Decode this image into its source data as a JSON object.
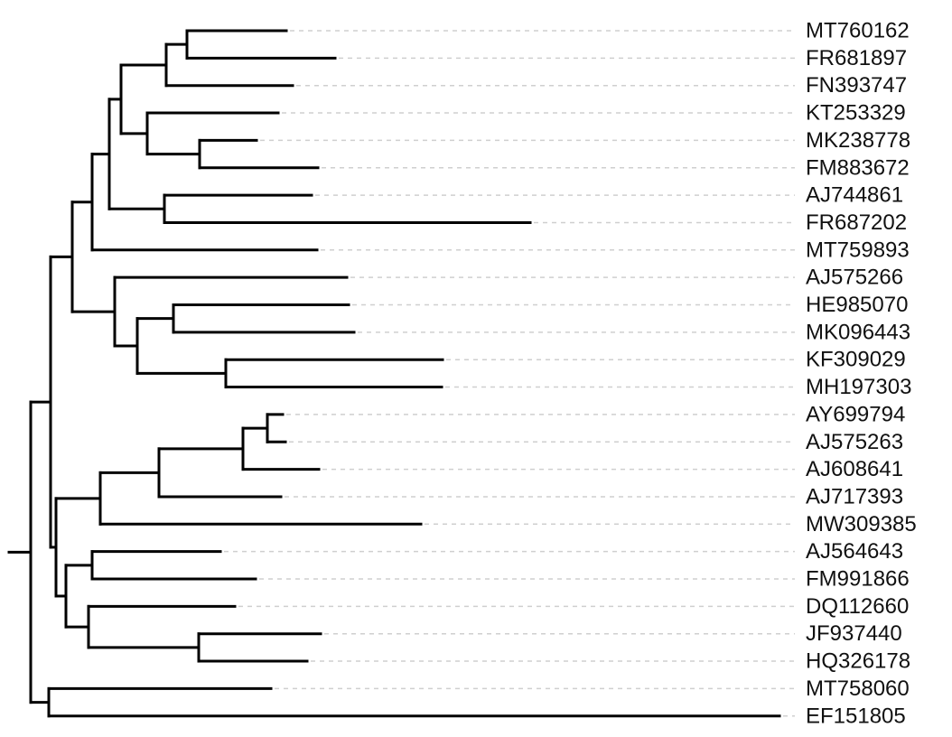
{
  "tree": {
    "branch_color": "#000000",
    "guide_color": "#cfcfcf",
    "leaves": [
      {
        "id": "t1",
        "label": "MT760162",
        "depth": 0.283
      },
      {
        "id": "t2",
        "label": "FR681897",
        "depth": 0.337
      },
      {
        "id": "t3",
        "label": "FN393747",
        "depth": 0.29
      },
      {
        "id": "t4",
        "label": "KT253329",
        "depth": 0.274
      },
      {
        "id": "t5",
        "label": "MK238778",
        "depth": 0.25
      },
      {
        "id": "t6",
        "label": "FM883672",
        "depth": 0.318
      },
      {
        "id": "t7",
        "label": "AJ744861",
        "depth": 0.311
      },
      {
        "id": "t8",
        "label": "FR687202",
        "depth": 0.553
      },
      {
        "id": "t9",
        "label": "MT759893",
        "depth": 0.317
      },
      {
        "id": "t10",
        "label": "AJ575266",
        "depth": 0.35
      },
      {
        "id": "t11",
        "label": "HE985070",
        "depth": 0.352
      },
      {
        "id": "t12",
        "label": "MK096443",
        "depth": 0.358
      },
      {
        "id": "t13",
        "label": "KF309029",
        "depth": 0.456
      },
      {
        "id": "t14",
        "label": "MH197303",
        "depth": 0.455
      },
      {
        "id": "t15",
        "label": "AY699794",
        "depth": 0.279
      },
      {
        "id": "t16",
        "label": "AJ575263",
        "depth": 0.282
      },
      {
        "id": "t17",
        "label": "AJ608641",
        "depth": 0.319
      },
      {
        "id": "t18",
        "label": "AJ717393",
        "depth": 0.277
      },
      {
        "id": "t19",
        "label": "MW309385",
        "depth": 0.432
      },
      {
        "id": "t20",
        "label": "AJ564643",
        "depth": 0.21
      },
      {
        "id": "t21",
        "label": "FM991866",
        "depth": 0.249
      },
      {
        "id": "t22",
        "label": "DQ112660",
        "depth": 0.226
      },
      {
        "id": "t23",
        "label": "JF937440",
        "depth": 0.321
      },
      {
        "id": "t24",
        "label": "HQ326178",
        "depth": 0.306
      },
      {
        "id": "t25",
        "label": "MT758060",
        "depth": 0.266
      },
      {
        "id": "t26",
        "label": "EF151805",
        "depth": 0.829
      }
    ],
    "internal_nodes": [
      {
        "id": "n1",
        "depth": 0.173,
        "children": [
          "t1",
          "t2"
        ]
      },
      {
        "id": "n2",
        "depth": 0.15,
        "children": [
          "n1",
          "t3"
        ]
      },
      {
        "id": "n3",
        "depth": 0.187,
        "children": [
          "t5",
          "t6"
        ]
      },
      {
        "id": "n4",
        "depth": 0.129,
        "children": [
          "t4",
          "n3"
        ]
      },
      {
        "id": "n5",
        "depth": 0.1,
        "children": [
          "n2",
          "n4"
        ]
      },
      {
        "id": "n6",
        "depth": 0.148,
        "children": [
          "t7",
          "t8"
        ]
      },
      {
        "id": "n7",
        "depth": 0.087,
        "children": [
          "n5",
          "n6"
        ]
      },
      {
        "id": "n8",
        "depth": 0.068,
        "children": [
          "n7",
          "t9"
        ]
      },
      {
        "id": "n9",
        "depth": 0.158,
        "children": [
          "t11",
          "t12"
        ]
      },
      {
        "id": "n10",
        "depth": 0.216,
        "children": [
          "t13",
          "t14"
        ]
      },
      {
        "id": "n11",
        "depth": 0.118,
        "children": [
          "n9",
          "n10"
        ]
      },
      {
        "id": "n12",
        "depth": 0.093,
        "children": [
          "t10",
          "n11"
        ]
      },
      {
        "id": "n13",
        "depth": 0.046,
        "children": [
          "n8",
          "n12"
        ]
      },
      {
        "id": "n14",
        "depth": 0.262,
        "children": [
          "t15",
          "t16"
        ]
      },
      {
        "id": "n15",
        "depth": 0.235,
        "children": [
          "n14",
          "t17"
        ]
      },
      {
        "id": "n16",
        "depth": 0.142,
        "children": [
          "n15",
          "t18"
        ]
      },
      {
        "id": "n17",
        "depth": 0.077,
        "children": [
          "n16",
          "t19"
        ]
      },
      {
        "id": "n18",
        "depth": 0.068,
        "children": [
          "t20",
          "t21"
        ]
      },
      {
        "id": "n19",
        "depth": 0.186,
        "children": [
          "t23",
          "t24"
        ]
      },
      {
        "id": "n20",
        "depth": 0.064,
        "children": [
          "t22",
          "n19"
        ]
      },
      {
        "id": "n21",
        "depth": 0.039,
        "children": [
          "n18",
          "n20"
        ]
      },
      {
        "id": "n22",
        "depth": 0.028,
        "children": [
          "n17",
          "n21"
        ]
      },
      {
        "id": "n23",
        "depth": 0.022,
        "children": [
          "n13",
          "n22"
        ]
      },
      {
        "id": "n24",
        "depth": 0.02,
        "children": [
          "t25",
          "t26"
        ]
      },
      {
        "id": "root",
        "depth": 0.0,
        "children": [
          "n23",
          "n24"
        ]
      }
    ],
    "root": "root"
  }
}
